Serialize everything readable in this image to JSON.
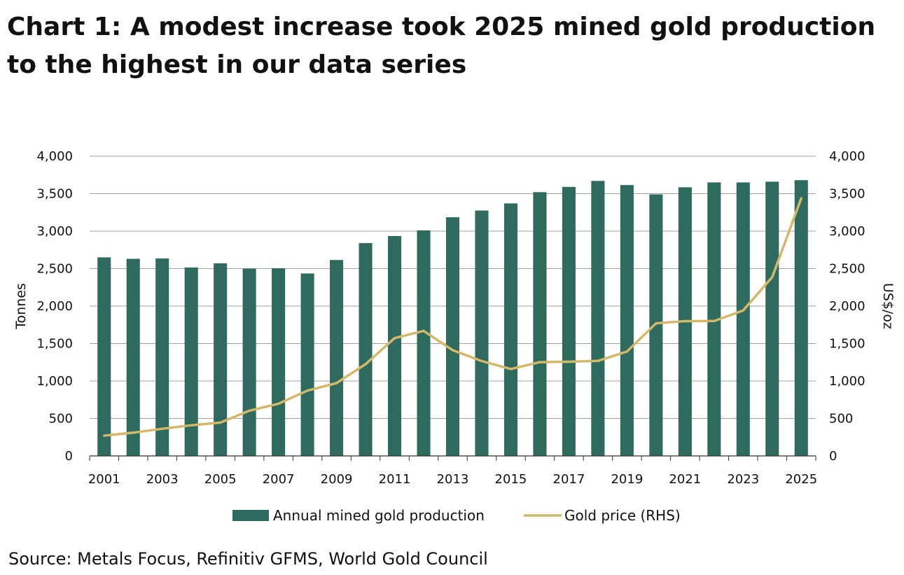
{
  "title": "Chart 1: A modest increase took 2025 mined gold production to the highest in our data series",
  "source": "Source: Metals Focus, Refinitiv GFMS, World Gold Council",
  "colors": {
    "bar": "#2e6b5e",
    "line": "#d4b86a",
    "grid": "#a0a0a0"
  },
  "chart_data": {
    "type": "bar",
    "x": [
      2001,
      2002,
      2003,
      2004,
      2005,
      2006,
      2007,
      2008,
      2009,
      2010,
      2011,
      2012,
      2013,
      2014,
      2015,
      2016,
      2017,
      2018,
      2019,
      2020,
      2021,
      2022,
      2023,
      2024,
      2025
    ],
    "x_tick_labels": [
      "2001",
      "2003",
      "2005",
      "2007",
      "2009",
      "2011",
      "2013",
      "2015",
      "2017",
      "2019",
      "2021",
      "2023",
      "2025"
    ],
    "series": [
      {
        "name": "Annual mined gold production",
        "type": "bar",
        "axis": "left",
        "values": [
          2650,
          2630,
          2635,
          2515,
          2570,
          2500,
          2505,
          2435,
          2615,
          2840,
          2935,
          3010,
          3185,
          3275,
          3370,
          3520,
          3590,
          3670,
          3615,
          3490,
          3585,
          3650,
          3650,
          3660,
          3680
        ]
      },
      {
        "name": "Gold price (RHS)",
        "type": "line",
        "axis": "right",
        "values": [
          271,
          310,
          363,
          409,
          445,
          604,
          696,
          872,
          972,
          1225,
          1572,
          1669,
          1411,
          1266,
          1160,
          1251,
          1257,
          1268,
          1393,
          1770,
          1799,
          1800,
          1941,
          2386,
          3439
        ]
      }
    ],
    "ylabel": "Tonnes",
    "y2label": "US$/oz",
    "ylim": [
      0,
      4000
    ],
    "y2lim": [
      0,
      4000
    ],
    "y_ticks": [
      "0",
      "500",
      "1,000",
      "1,500",
      "2,000",
      "2,500",
      "3,000",
      "3,500",
      "4,000"
    ],
    "y2_ticks": [
      "0",
      "500",
      "1,000",
      "1,500",
      "2,000",
      "2,500",
      "3,000",
      "3,500",
      "4,000"
    ],
    "grid": true,
    "legend_position": "bottom"
  }
}
